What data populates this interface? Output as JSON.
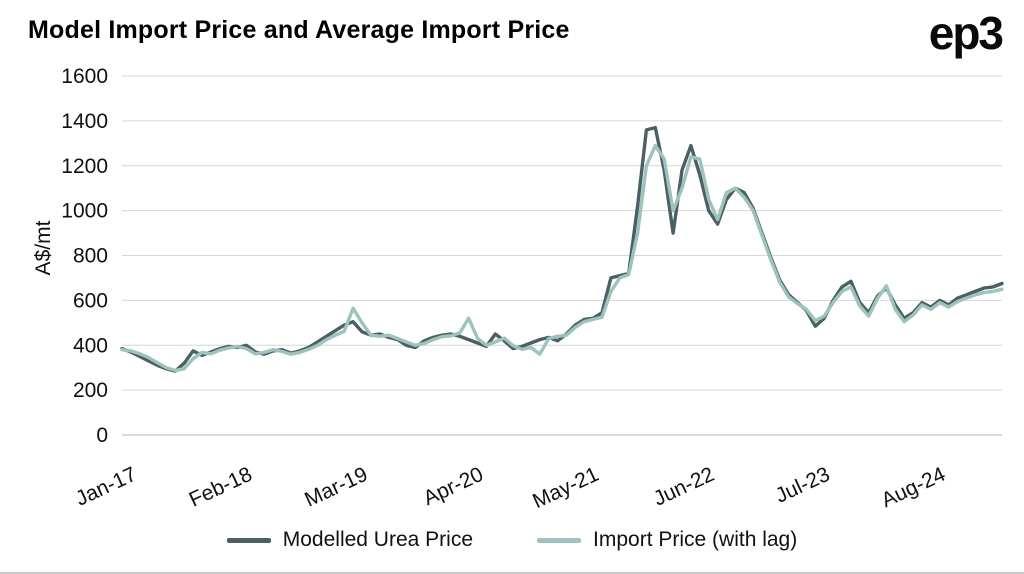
{
  "header": {
    "title": "Model Import Price and Average Import Price",
    "logo": "ep3"
  },
  "chart_data": {
    "type": "line",
    "title": "Model Import Price and Average Import Price",
    "xlabel": "",
    "ylabel": "A$/mt",
    "ylim": [
      0,
      1600
    ],
    "y_ticks": [
      0,
      200,
      400,
      600,
      800,
      1000,
      1200,
      1400,
      1600
    ],
    "grid": true,
    "legend_position": "bottom",
    "x_unit": "monthly, Jan-2017 to Apr-2025",
    "x_tick_labels": [
      "Jan-17",
      "Feb-18",
      "Mar-19",
      "Apr-20",
      "May-21",
      "Jun-22",
      "Jul-23",
      "Aug-24"
    ],
    "x_tick_indices": [
      0,
      13,
      26,
      39,
      52,
      65,
      78,
      91
    ],
    "series": [
      {
        "name": "Modelled Urea Price",
        "color": "#4c5f66",
        "values": [
          385,
          370,
          350,
          330,
          310,
          295,
          285,
          320,
          375,
          355,
          370,
          385,
          395,
          390,
          400,
          370,
          360,
          375,
          380,
          365,
          375,
          390,
          415,
          440,
          465,
          490,
          505,
          460,
          445,
          450,
          435,
          425,
          400,
          390,
          420,
          435,
          445,
          450,
          440,
          425,
          410,
          395,
          450,
          420,
          385,
          395,
          410,
          425,
          435,
          420,
          450,
          490,
          515,
          520,
          545,
          700,
          710,
          720,
          1020,
          1360,
          1370,
          1180,
          900,
          1180,
          1290,
          1160,
          1000,
          940,
          1050,
          1100,
          1080,
          1010,
          900,
          790,
          690,
          625,
          590,
          555,
          485,
          520,
          600,
          660,
          685,
          590,
          545,
          620,
          655,
          580,
          520,
          545,
          590,
          570,
          600,
          580,
          610,
          625,
          640,
          655,
          660,
          675
        ]
      },
      {
        "name": "Import Price (with lag)",
        "color": "#9dc4bc",
        "values": [
          380,
          375,
          362,
          345,
          322,
          300,
          288,
          295,
          340,
          368,
          362,
          378,
          388,
          395,
          385,
          362,
          368,
          380,
          372,
          360,
          368,
          382,
          400,
          425,
          445,
          462,
          565,
          500,
          445,
          440,
          445,
          430,
          415,
          400,
          408,
          425,
          438,
          442,
          455,
          520,
          430,
          400,
          415,
          432,
          398,
          382,
          390,
          360,
          430,
          440,
          445,
          480,
          505,
          515,
          525,
          640,
          700,
          715,
          900,
          1200,
          1290,
          1230,
          1000,
          1100,
          1240,
          1230,
          1050,
          960,
          1080,
          1100,
          1060,
          1000,
          890,
          780,
          680,
          615,
          585,
          560,
          510,
          530,
          590,
          640,
          660,
          575,
          530,
          610,
          665,
          560,
          505,
          535,
          580,
          560,
          590,
          570,
          595,
          610,
          625,
          635,
          640,
          650
        ]
      }
    ]
  },
  "legend": {
    "items": [
      {
        "label": "Modelled Urea Price"
      },
      {
        "label": "Import Price (with lag)"
      }
    ]
  }
}
